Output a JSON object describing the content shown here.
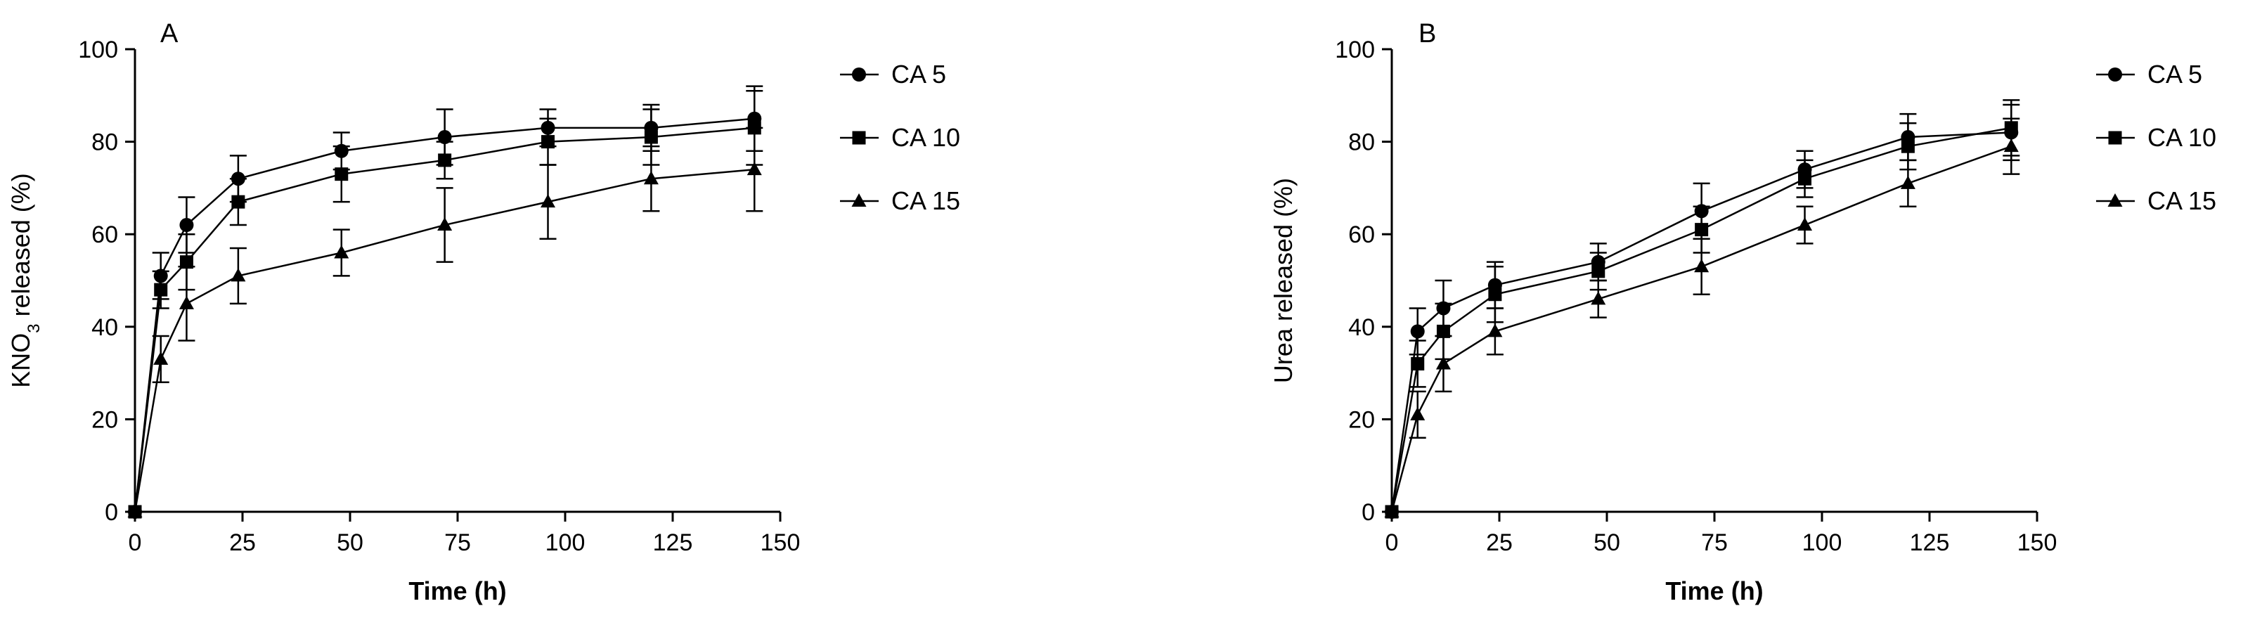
{
  "chart_data": [
    {
      "type": "line",
      "panel_label": "A",
      "title": "",
      "xlabel": "Time (h)",
      "ylabel": "KNO3 released (%)",
      "ylabel_parts": [
        "KNO",
        "3",
        " released (%)"
      ],
      "xlim": [
        0,
        150
      ],
      "ylim": [
        0,
        100
      ],
      "xticks": [
        0,
        25,
        50,
        75,
        100,
        125,
        150
      ],
      "yticks": [
        0,
        20,
        40,
        60,
        80,
        100
      ],
      "grid": false,
      "legend_position": "right",
      "x": [
        0,
        6,
        12,
        24,
        48,
        72,
        96,
        120,
        144
      ],
      "series": [
        {
          "name": "CA 5",
          "marker": "circle",
          "values": [
            0,
            51,
            62,
            72,
            78,
            81,
            83,
            83,
            85
          ],
          "error": [
            0,
            5,
            6,
            5,
            4,
            6,
            4,
            5,
            7
          ]
        },
        {
          "name": "CA 10",
          "marker": "square",
          "values": [
            0,
            48,
            54,
            67,
            73,
            76,
            80,
            81,
            83
          ],
          "error": [
            0,
            4,
            6,
            5,
            6,
            4,
            5,
            6,
            8
          ]
        },
        {
          "name": "CA 15",
          "marker": "triangle",
          "values": [
            0,
            33,
            45,
            51,
            56,
            62,
            67,
            72,
            74
          ],
          "error": [
            0,
            5,
            8,
            6,
            5,
            8,
            8,
            7,
            9
          ]
        }
      ]
    },
    {
      "type": "line",
      "panel_label": "B",
      "title": "",
      "xlabel": "Time (h)",
      "ylabel": "Urea released (%)",
      "xlim": [
        0,
        150
      ],
      "ylim": [
        0,
        100
      ],
      "xticks": [
        0,
        25,
        50,
        75,
        100,
        125,
        150
      ],
      "yticks": [
        0,
        20,
        40,
        60,
        80,
        100
      ],
      "grid": false,
      "legend_position": "right",
      "x": [
        0,
        6,
        12,
        24,
        48,
        72,
        96,
        120,
        144
      ],
      "series": [
        {
          "name": "CA 5",
          "marker": "circle",
          "values": [
            0,
            39,
            44,
            49,
            54,
            65,
            74,
            81,
            82
          ],
          "error": [
            0,
            5,
            6,
            5,
            4,
            6,
            4,
            5,
            6
          ]
        },
        {
          "name": "CA 10",
          "marker": "square",
          "values": [
            0,
            32,
            39,
            47,
            52,
            61,
            72,
            79,
            83
          ],
          "error": [
            0,
            5,
            6,
            6,
            4,
            5,
            4,
            5,
            6
          ]
        },
        {
          "name": "CA 15",
          "marker": "triangle",
          "values": [
            0,
            21,
            32,
            39,
            46,
            53,
            62,
            71,
            79
          ],
          "error": [
            0,
            5,
            6,
            5,
            4,
            6,
            4,
            5,
            6
          ]
        }
      ]
    }
  ]
}
